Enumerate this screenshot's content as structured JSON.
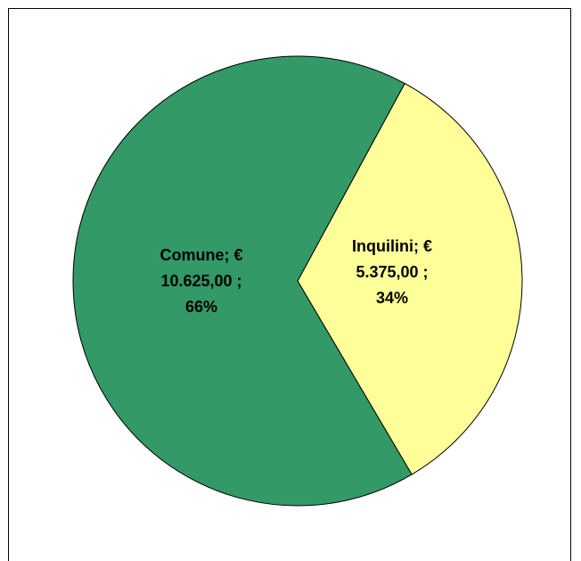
{
  "chart_data": {
    "type": "pie",
    "title": "",
    "slices": [
      {
        "name": "Comune",
        "value": 10625.0,
        "percent": 66,
        "color": "#339966",
        "label_lines": [
          "Comune;  €",
          "10.625,00 ;",
          "66%"
        ]
      },
      {
        "name": "Inquilini",
        "value": 5375.0,
        "percent": 34,
        "color": "#FFFF99",
        "label_lines": [
          "Inquilini;  €",
          "5.375,00 ;",
          "34%"
        ]
      }
    ]
  }
}
